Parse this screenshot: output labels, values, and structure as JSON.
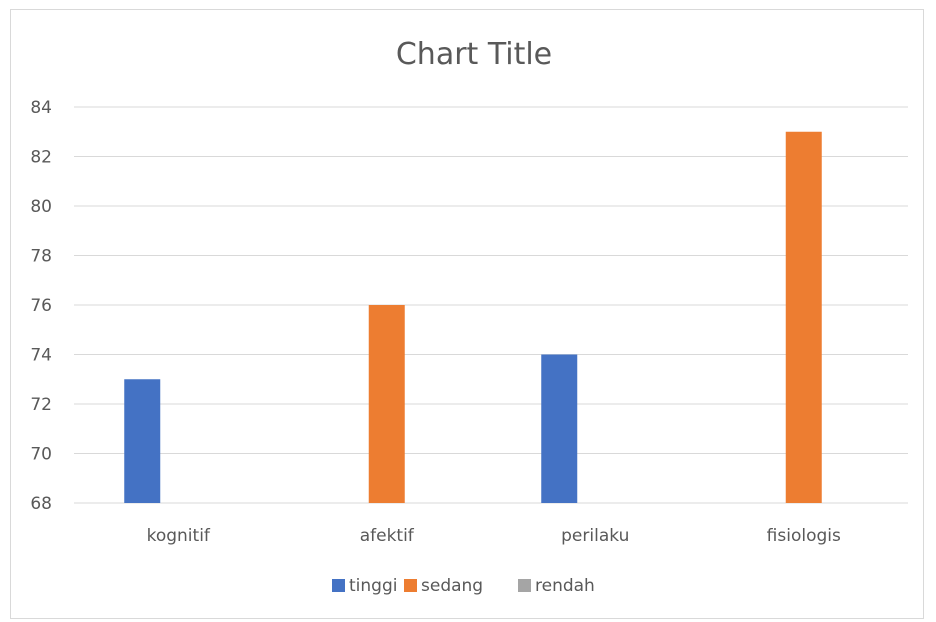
{
  "chart_data": {
    "type": "bar",
    "title": "Chart Title",
    "categories": [
      "kognitif",
      "afektif",
      "perilaku",
      "fisiologis"
    ],
    "series": [
      {
        "name": "tinggi",
        "color": "#4472c4",
        "values": [
          73,
          null,
          74,
          null
        ]
      },
      {
        "name": "sedang",
        "color": "#ed7d31",
        "values": [
          null,
          76,
          null,
          83
        ]
      },
      {
        "name": "rendah",
        "color": "#a5a5a5",
        "values": [
          null,
          null,
          null,
          null
        ]
      }
    ],
    "ylim": [
      68,
      84
    ],
    "yticks": [
      68,
      70,
      72,
      74,
      76,
      78,
      80,
      82,
      84
    ],
    "grid": true,
    "legend_position": "bottom"
  }
}
